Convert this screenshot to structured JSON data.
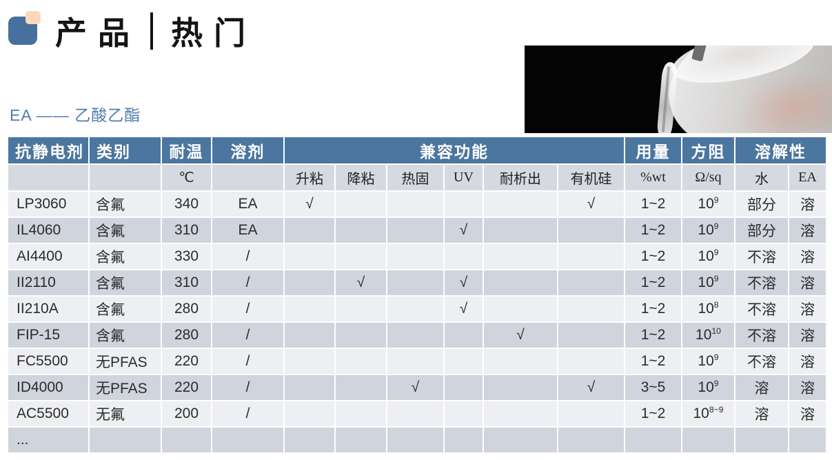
{
  "page": {
    "title_left": "产品",
    "title_right": "热门",
    "subtitle": "EA —— 乙酸乙酯"
  },
  "colors": {
    "header_bg": "#4b769f",
    "subheader_bg": "#d6d9e0",
    "row_light": "#edeff3",
    "row_dark": "#cfd4dd",
    "accent_blue": "#4e7dab",
    "logo_blue": "#47709e",
    "logo_peach": "#fcd9ba"
  },
  "table": {
    "header_top": [
      "抗静电剂",
      "类别",
      "耐温",
      "溶剂",
      "兼容功能",
      "用量",
      "方阻",
      "溶解性"
    ],
    "header_sub": [
      "",
      "",
      "℃",
      "",
      "升粘",
      "降粘",
      "热固",
      "UV",
      "耐析出",
      "有机硅",
      "%wt",
      "Ω/sq",
      "水",
      "EA"
    ],
    "check_mark": "√",
    "rows": [
      {
        "name": "LP3060",
        "category": "含氟",
        "temp": "340",
        "solvent": "EA",
        "compat": [
          "√",
          "",
          "",
          "",
          "",
          "√"
        ],
        "dosage": "1~2",
        "resistance": "10^9",
        "resistance_bold": false,
        "water": "部分",
        "ea": "溶"
      },
      {
        "name": "IL4060",
        "category": "含氟",
        "temp": "310",
        "solvent": "EA",
        "compat": [
          "",
          "",
          "",
          "√",
          "",
          ""
        ],
        "dosage": "1~2",
        "resistance": "10^9",
        "resistance_bold": false,
        "water": "部分",
        "ea": "溶"
      },
      {
        "name": "AI4400",
        "category": "含氟",
        "temp": "330",
        "solvent": "/",
        "compat": [
          "",
          "",
          "",
          "",
          "",
          ""
        ],
        "dosage": "1~2",
        "resistance": "10^9",
        "resistance_bold": false,
        "water": "不溶",
        "ea": "溶"
      },
      {
        "name": "II2110",
        "category": "含氟",
        "temp": "310",
        "solvent": "/",
        "compat": [
          "",
          "√",
          "",
          "√",
          "",
          ""
        ],
        "dosage": "1~2",
        "resistance": "10^9",
        "resistance_bold": false,
        "water": "不溶",
        "ea": "溶"
      },
      {
        "name": "II210A",
        "category": "含氟",
        "temp": "280",
        "solvent": "/",
        "compat": [
          "",
          "",
          "",
          "√",
          "",
          ""
        ],
        "dosage": "1~2",
        "resistance": "10^8",
        "resistance_bold": true,
        "water": "不溶",
        "ea": "溶"
      },
      {
        "name": "FIP-15",
        "category": "含氟",
        "temp": "280",
        "solvent": "/",
        "compat": [
          "",
          "",
          "",
          "",
          "√",
          ""
        ],
        "dosage": "1~2",
        "resistance": "10^10",
        "resistance_bold": true,
        "water": "不溶",
        "ea": "溶"
      },
      {
        "name": "FC5500",
        "category": "无PFAS",
        "temp": "220",
        "solvent": "/",
        "compat": [
          "",
          "",
          "",
          "",
          "",
          ""
        ],
        "dosage": "1~2",
        "resistance": "10^9",
        "resistance_bold": false,
        "water": "不溶",
        "ea": "溶"
      },
      {
        "name": "ID4000",
        "category": "无PFAS",
        "temp": "220",
        "solvent": "/",
        "compat": [
          "",
          "",
          "√",
          "",
          "",
          "√"
        ],
        "dosage": "3~5",
        "resistance": "10^9",
        "resistance_bold": false,
        "water": "溶",
        "ea": "溶"
      },
      {
        "name": "AC5500",
        "category": "无氟",
        "temp": "200",
        "solvent": "/",
        "compat": [
          "",
          "",
          "",
          "",
          "",
          ""
        ],
        "dosage": "1~2",
        "resistance": "10^8~9",
        "resistance_bold": false,
        "water": "溶",
        "ea": "溶"
      },
      {
        "name": "...",
        "category": "",
        "temp": "",
        "solvent": "",
        "compat": [
          "",
          "",
          "",
          "",
          "",
          ""
        ],
        "dosage": "",
        "resistance": "",
        "resistance_bold": false,
        "water": "",
        "ea": ""
      }
    ]
  }
}
